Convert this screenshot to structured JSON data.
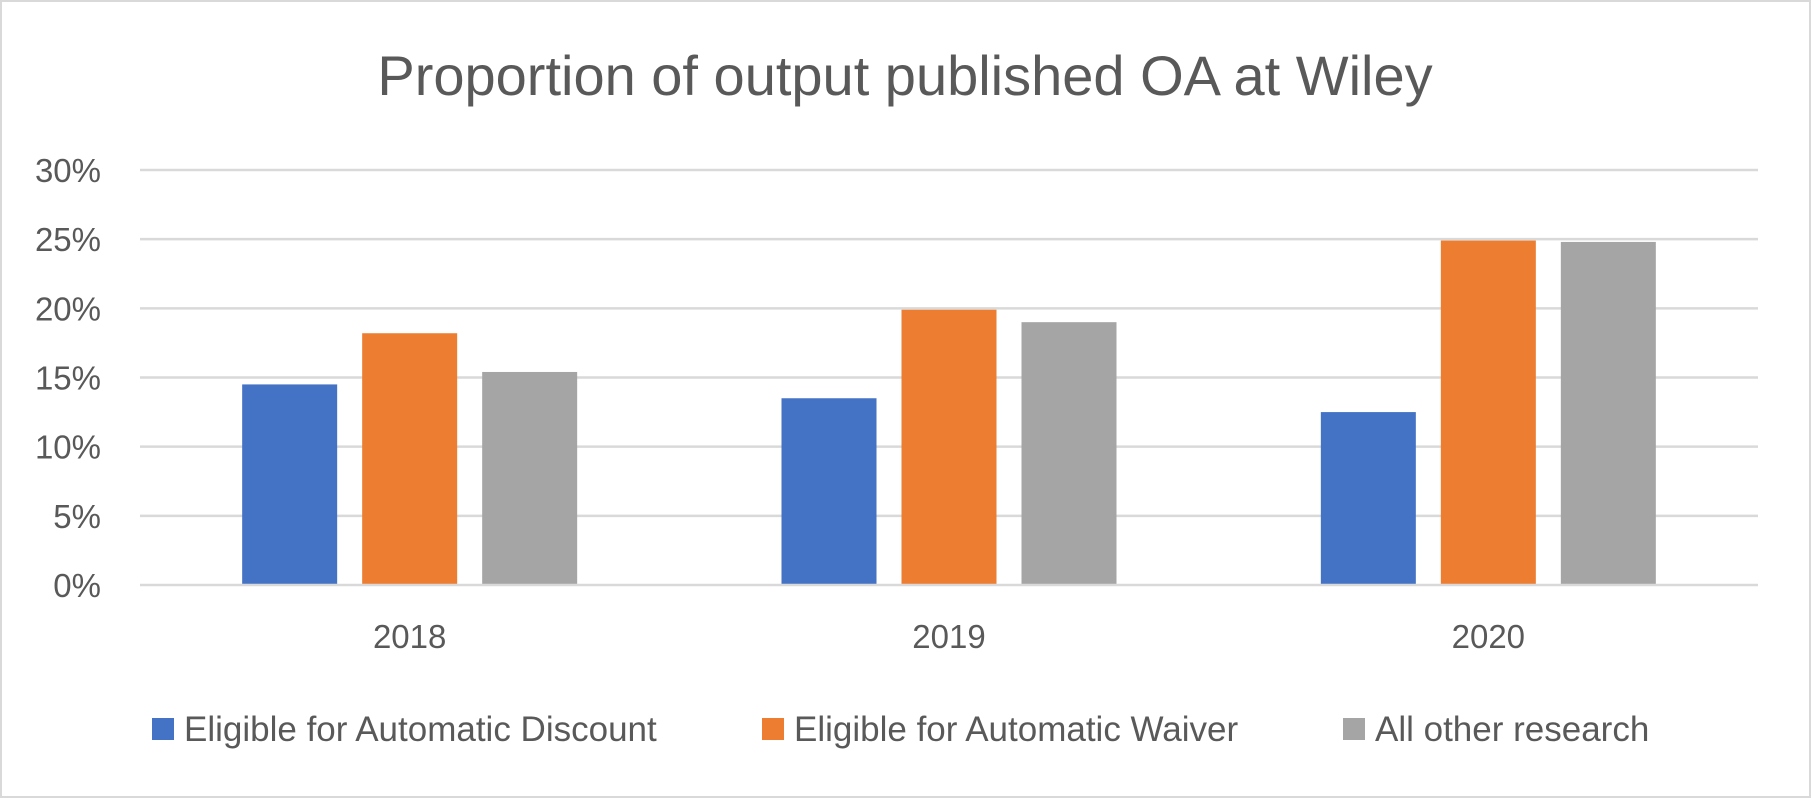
{
  "chart_data": {
    "type": "bar",
    "title": "Proportion of output published OA at Wiley",
    "xlabel": "",
    "ylabel": "",
    "categories": [
      "2018",
      "2019",
      "2020"
    ],
    "series": [
      {
        "name": "Eligible for Automatic Discount",
        "values": [
          14.5,
          13.5,
          12.5
        ],
        "color": "#4472c4"
      },
      {
        "name": "Eligible for Automatic Waiver",
        "values": [
          18.2,
          19.9,
          24.9
        ],
        "color": "#ed7d31"
      },
      {
        "name": "All other research",
        "values": [
          15.4,
          19.0,
          24.8
        ],
        "color": "#a5a5a5"
      }
    ],
    "ylim": [
      0,
      30
    ],
    "yticks": [
      "0%",
      "5%",
      "10%",
      "15%",
      "20%",
      "25%",
      "30%"
    ],
    "ytick_values": [
      0,
      5,
      10,
      15,
      20,
      25,
      30
    ],
    "grid": true,
    "legend_position": "bottom",
    "gridline_color": "#d9d9d9",
    "text_color": "#595959"
  }
}
